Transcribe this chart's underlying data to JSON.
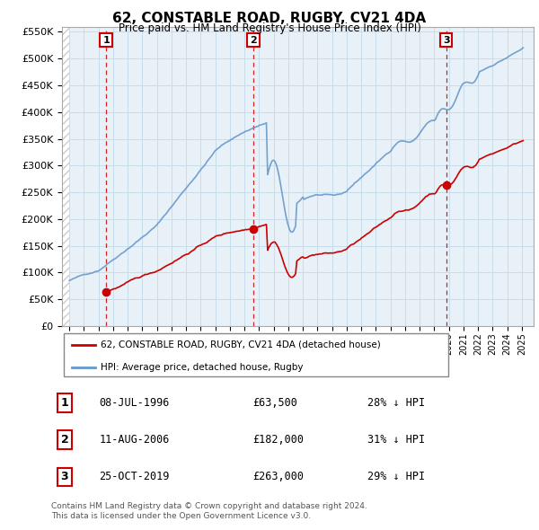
{
  "title": "62, CONSTABLE ROAD, RUGBY, CV21 4DA",
  "subtitle": "Price paid vs. HM Land Registry's House Price Index (HPI)",
  "ylim": [
    0,
    560000
  ],
  "yticks": [
    0,
    50000,
    100000,
    150000,
    200000,
    250000,
    300000,
    350000,
    400000,
    450000,
    500000,
    550000
  ],
  "ytick_labels": [
    "£0",
    "£50K",
    "£100K",
    "£150K",
    "£200K",
    "£250K",
    "£300K",
    "£350K",
    "£400K",
    "£450K",
    "£500K",
    "£550K"
  ],
  "xlim_start": 1993.5,
  "xlim_end": 2025.8,
  "transactions": [
    {
      "id": 1,
      "date": "08-JUL-1996",
      "year": 1996.52,
      "price": 63500,
      "pct": "28%",
      "dir": "↓"
    },
    {
      "id": 2,
      "date": "11-AUG-2006",
      "year": 2006.61,
      "price": 182000,
      "pct": "31%",
      "dir": "↓"
    },
    {
      "id": 3,
      "date": "25-OCT-2019",
      "year": 2019.81,
      "price": 263000,
      "pct": "29%",
      "dir": "↓"
    }
  ],
  "legend_property_label": "62, CONSTABLE ROAD, RUGBY, CV21 4DA (detached house)",
  "legend_hpi_label": "HPI: Average price, detached house, Rugby",
  "footer_line1": "Contains HM Land Registry data © Crown copyright and database right 2024.",
  "footer_line2": "This data is licensed under the Open Government Licence v3.0.",
  "property_color": "#cc0000",
  "hpi_color": "#6699cc",
  "grid_color": "#c8dcea",
  "chart_bg_color": "#e8f0f8",
  "hatch_region_end": 1994.0,
  "dashed_line_color": "#cc0000",
  "box_border_color": "#cc0000"
}
